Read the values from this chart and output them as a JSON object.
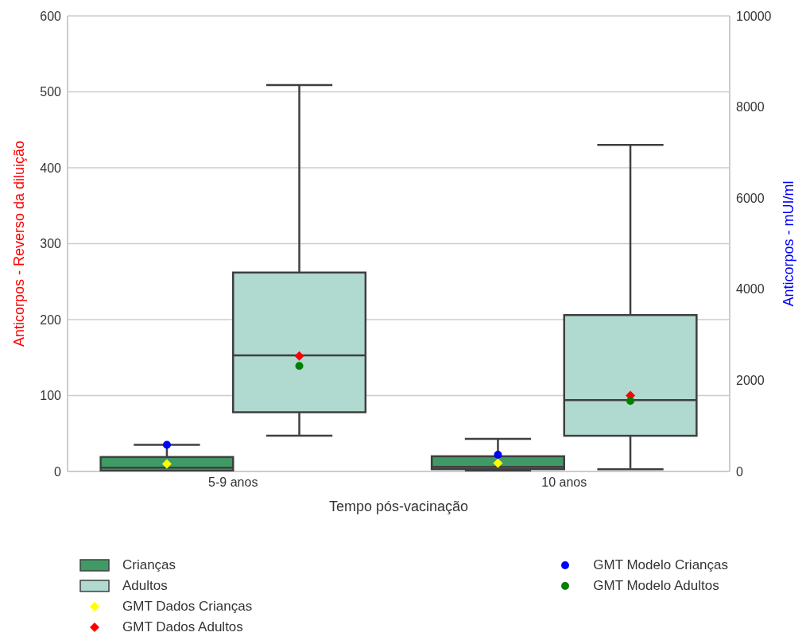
{
  "chart_data": {
    "type": "box",
    "xlabel": "Tempo pós-vacinação",
    "ylabel": "Anticorpos - Reverso da diluição",
    "y2label": "Anticorpos - mUI/ml",
    "categories": [
      "5-9 anos",
      "10 anos"
    ],
    "ylim": [
      0,
      600
    ],
    "yticks": [
      0,
      100,
      200,
      300,
      400,
      500,
      600
    ],
    "y2lim": [
      0,
      10000
    ],
    "y2ticks": [
      0,
      2000,
      4000,
      6000,
      8000,
      10000
    ],
    "grid": "y",
    "legend": "bottom",
    "series": [
      {
        "name": "Crianças",
        "color": "#3f9a66",
        "boxes": [
          {
            "low": 1,
            "q1": 1,
            "median": 5,
            "q3": 19,
            "high": 35
          },
          {
            "low": 1,
            "q1": 3,
            "median": 6,
            "q3": 20,
            "high": 43
          }
        ]
      },
      {
        "name": "Adultos",
        "color": "#b0d9d0",
        "boxes": [
          {
            "low": 47,
            "q1": 78,
            "median": 153,
            "q3": 262,
            "high": 509
          },
          {
            "low": 3,
            "q1": 47,
            "median": 94,
            "q3": 206,
            "high": 430
          }
        ]
      },
      {
        "name": "GMT Dados Crianças",
        "type": "scatter",
        "marker": "diamond",
        "color": "#ffff00",
        "x": [
          "5-9 anos",
          "10 anos"
        ],
        "values": [
          10,
          11
        ]
      },
      {
        "name": "GMT Dados Adultos",
        "type": "scatter",
        "marker": "diamond",
        "color": "#ff0000",
        "x": [
          "5-9 anos",
          "10 anos"
        ],
        "values": [
          152,
          100
        ]
      },
      {
        "name": "GMT Modelo Crianças",
        "type": "scatter",
        "marker": "circle",
        "color": "#0000ff",
        "x": [
          "5-9 anos",
          "10 anos"
        ],
        "values": [
          35,
          22
        ]
      },
      {
        "name": "GMT Modelo Adultos",
        "type": "scatter",
        "marker": "circle",
        "color": "#008000",
        "x": [
          "5-9 anos",
          "10 anos"
        ],
        "values": [
          139,
          93
        ]
      }
    ]
  }
}
